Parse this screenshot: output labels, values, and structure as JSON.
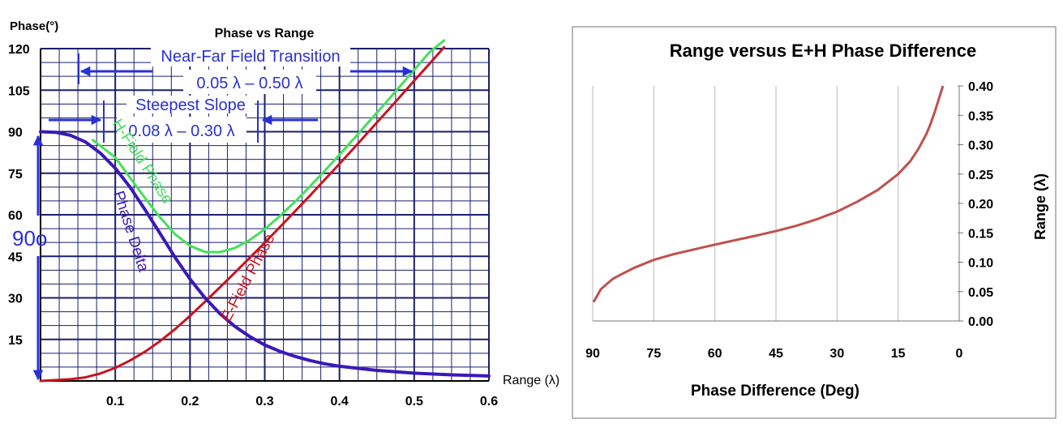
{
  "colors": {
    "grid": "#1a1f6e",
    "phase_delta": "#3a19b8",
    "h_field": "#44e05a",
    "e_field": "#c8141e",
    "annotation": "#2830d8",
    "right_curve": "#c0504d",
    "right_grid": "#b8b8b8",
    "right_border": "#8a8a8a"
  },
  "chart_data": [
    {
      "type": "line",
      "title": "Phase vs Range",
      "ylabel": "Phase(°)",
      "xlabel": "Range (λ)",
      "xlim": [
        0,
        0.6
      ],
      "ylim": [
        0,
        120
      ],
      "x_tick_labels": [
        "0.1",
        "0.2",
        "0.3",
        "0.4",
        "0.5",
        "0.6"
      ],
      "y_tick_labels": [
        "15",
        "30",
        "45",
        "60",
        "75",
        "90",
        "105",
        "120"
      ],
      "grid": true,
      "series": [
        {
          "name": "Phase Delta",
          "x": [
            0,
            0.02,
            0.04,
            0.06,
            0.08,
            0.1,
            0.12,
            0.14,
            0.16,
            0.18,
            0.2,
            0.22,
            0.24,
            0.26,
            0.28,
            0.3,
            0.32,
            0.34,
            0.36,
            0.38,
            0.4,
            0.45,
            0.5,
            0.55,
            0.6
          ],
          "y": [
            90,
            89.8,
            88.7,
            86.3,
            82.3,
            76.8,
            69.9,
            61.8,
            53.2,
            44.6,
            36.8,
            30,
            24.3,
            19.7,
            16,
            13,
            10.7,
            8.9,
            7.4,
            6.2,
            5.3,
            3.8,
            2.8,
            2.2,
            1.8
          ]
        },
        {
          "name": "H-Field Phase",
          "x": [
            0.07,
            0.1,
            0.12,
            0.14,
            0.16,
            0.18,
            0.2,
            0.22,
            0.24,
            0.26,
            0.28,
            0.3,
            0.32,
            0.34,
            0.36,
            0.38,
            0.4,
            0.42,
            0.44,
            0.46,
            0.48,
            0.5,
            0.52,
            0.54
          ],
          "y": [
            87,
            80.7,
            73.3,
            66,
            59,
            53,
            48.8,
            46.6,
            46.5,
            48,
            50.9,
            54.8,
            59.5,
            64.6,
            70.1,
            75.8,
            81.7,
            87.7,
            93.8,
            99.9,
            106.1,
            112.3,
            118.6,
            124.9
          ]
        },
        {
          "name": "E-Field Phase",
          "x": [
            0,
            0.04,
            0.06,
            0.08,
            0.1,
            0.12,
            0.14,
            0.16,
            0.18,
            0.2,
            0.22,
            0.24,
            0.26,
            0.28,
            0.3,
            0.32,
            0.34,
            0.36,
            0.38,
            0.4,
            0.42,
            0.44,
            0.46,
            0.48,
            0.5,
            0.52,
            0.54
          ],
          "y": [
            0,
            0.6,
            1.3,
            2.7,
            4.7,
            7.4,
            10.6,
            14.4,
            18.7,
            23.5,
            28.6,
            33.8,
            39.1,
            44.5,
            49.9,
            55.5,
            61.1,
            66.8,
            72.6,
            78.4,
            84.3,
            90.3,
            96.3,
            102.3,
            108.4,
            114.4,
            120.5
          ]
        }
      ],
      "annotations": {
        "near_far_title": "Near-Far Field Transition",
        "near_far_range": "0.05 λ – 0.50 λ",
        "steepest_title": "Steepest Slope",
        "steepest_range": "0.08 λ – 0.30 λ",
        "ninety": "90o",
        "h_label": "H-Field Phase",
        "delta_label": "Phase Delta",
        "e_label": "E-Field Phase"
      }
    },
    {
      "type": "line",
      "title": "Range versus E+H Phase Difference",
      "xlabel": "Phase Difference (Deg)",
      "ylabel": "Range (λ)",
      "xlim": [
        90,
        0
      ],
      "ylim": [
        0,
        0.4
      ],
      "x_tick_labels": [
        "90",
        "75",
        "60",
        "45",
        "30",
        "15",
        "0"
      ],
      "y_tick_labels": [
        "0.00",
        "0.05",
        "0.10",
        "0.15",
        "0.20",
        "0.25",
        "0.30",
        "0.35",
        "0.40"
      ],
      "grid": true,
      "series": [
        {
          "x": [
            89.8,
            88,
            85,
            80,
            75,
            70,
            60,
            50,
            45,
            40,
            35,
            30,
            25,
            20,
            15,
            12,
            10,
            8,
            7,
            6,
            5,
            4
          ],
          "y": [
            0.032,
            0.054,
            0.072,
            0.09,
            0.104,
            0.114,
            0.13,
            0.145,
            0.153,
            0.162,
            0.173,
            0.186,
            0.203,
            0.223,
            0.25,
            0.272,
            0.293,
            0.319,
            0.336,
            0.356,
            0.378,
            0.4
          ]
        }
      ]
    }
  ]
}
